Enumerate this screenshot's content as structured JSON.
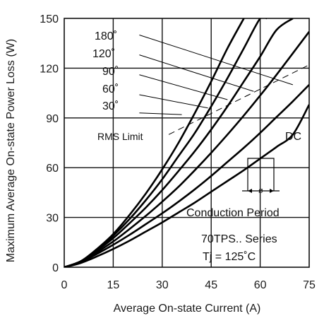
{
  "chart_data": {
    "type": "line",
    "xlabel": "Average On-state Current (A)",
    "ylabel": "Maximum Average On-state Power Loss (W)",
    "xlim": [
      0,
      75
    ],
    "ylim": [
      0,
      150
    ],
    "xticks": [
      0,
      15,
      30,
      45,
      60,
      75
    ],
    "yticks": [
      0,
      30,
      60,
      90,
      120,
      150
    ],
    "grid": true,
    "series": [
      {
        "name": "180°",
        "x": [
          0,
          5,
          10,
          15,
          20,
          25,
          30,
          35,
          40,
          45,
          50,
          55
        ],
        "y": [
          0,
          3.5,
          11,
          20,
          31.5,
          44.5,
          59,
          75,
          93,
          112,
          132,
          150
        ]
      },
      {
        "name": "120°",
        "x": [
          0,
          5,
          10,
          15,
          20,
          25,
          30,
          35,
          40,
          45,
          50,
          55,
          60,
          62
        ],
        "y": [
          0,
          3.5,
          10.5,
          19,
          29,
          40.5,
          53,
          67,
          81,
          97,
          114,
          132,
          150,
          150
        ]
      },
      {
        "name": "90°",
        "x": [
          0,
          5,
          10,
          15,
          20,
          25,
          30,
          35,
          40,
          45,
          50,
          55,
          60,
          65,
          70
        ],
        "y": [
          0,
          3.5,
          10,
          17.5,
          26.5,
          36,
          46.5,
          58,
          70,
          83,
          97,
          112,
          127,
          143,
          150
        ]
      },
      {
        "name": "60°",
        "x": [
          0,
          5,
          10,
          15,
          20,
          25,
          30,
          35,
          40,
          45,
          50,
          55,
          60,
          65,
          70,
          75
        ],
        "y": [
          0,
          3,
          9,
          15.5,
          23,
          31,
          39.5,
          48.5,
          58.5,
          69,
          80,
          91.5,
          103.5,
          116,
          129,
          142
        ]
      },
      {
        "name": "30°",
        "x": [
          0,
          5,
          10,
          15,
          20,
          25,
          30,
          35,
          40,
          45,
          50,
          55,
          60,
          65,
          70,
          75
        ],
        "y": [
          0,
          3,
          8,
          13.5,
          19.5,
          26,
          32.5,
          39.5,
          47,
          55,
          63.5,
          72,
          81,
          90.5,
          100,
          110
        ]
      },
      {
        "name": "DC",
        "x": [
          0,
          5,
          10,
          15,
          20,
          25,
          30,
          35,
          40,
          45,
          50,
          55,
          60,
          65,
          70,
          75
        ],
        "y": [
          0,
          2.5,
          6.5,
          11,
          16,
          21.5,
          27,
          33,
          39,
          45.5,
          52,
          58.5,
          65.5,
          72.5,
          80,
          98
        ]
      }
    ],
    "rms_limit": {
      "name": "RMS Limit",
      "x": [
        32,
        75
      ],
      "y": [
        80,
        122
      ]
    },
    "annotations": {
      "curve_labels": [
        "180˚",
        "120˚",
        "90˚",
        "60˚",
        "30˚"
      ],
      "rms_label": "RMS Limit",
      "dc_label": "DC",
      "inset_symbol": "ø",
      "conduction": "Conduction Period",
      "series_text": "70TPS.. Series",
      "tj_text": "Tj = 125˚C"
    }
  },
  "colors": {
    "curve": "#000000",
    "grid": "#111111",
    "background": "#ffffff"
  }
}
